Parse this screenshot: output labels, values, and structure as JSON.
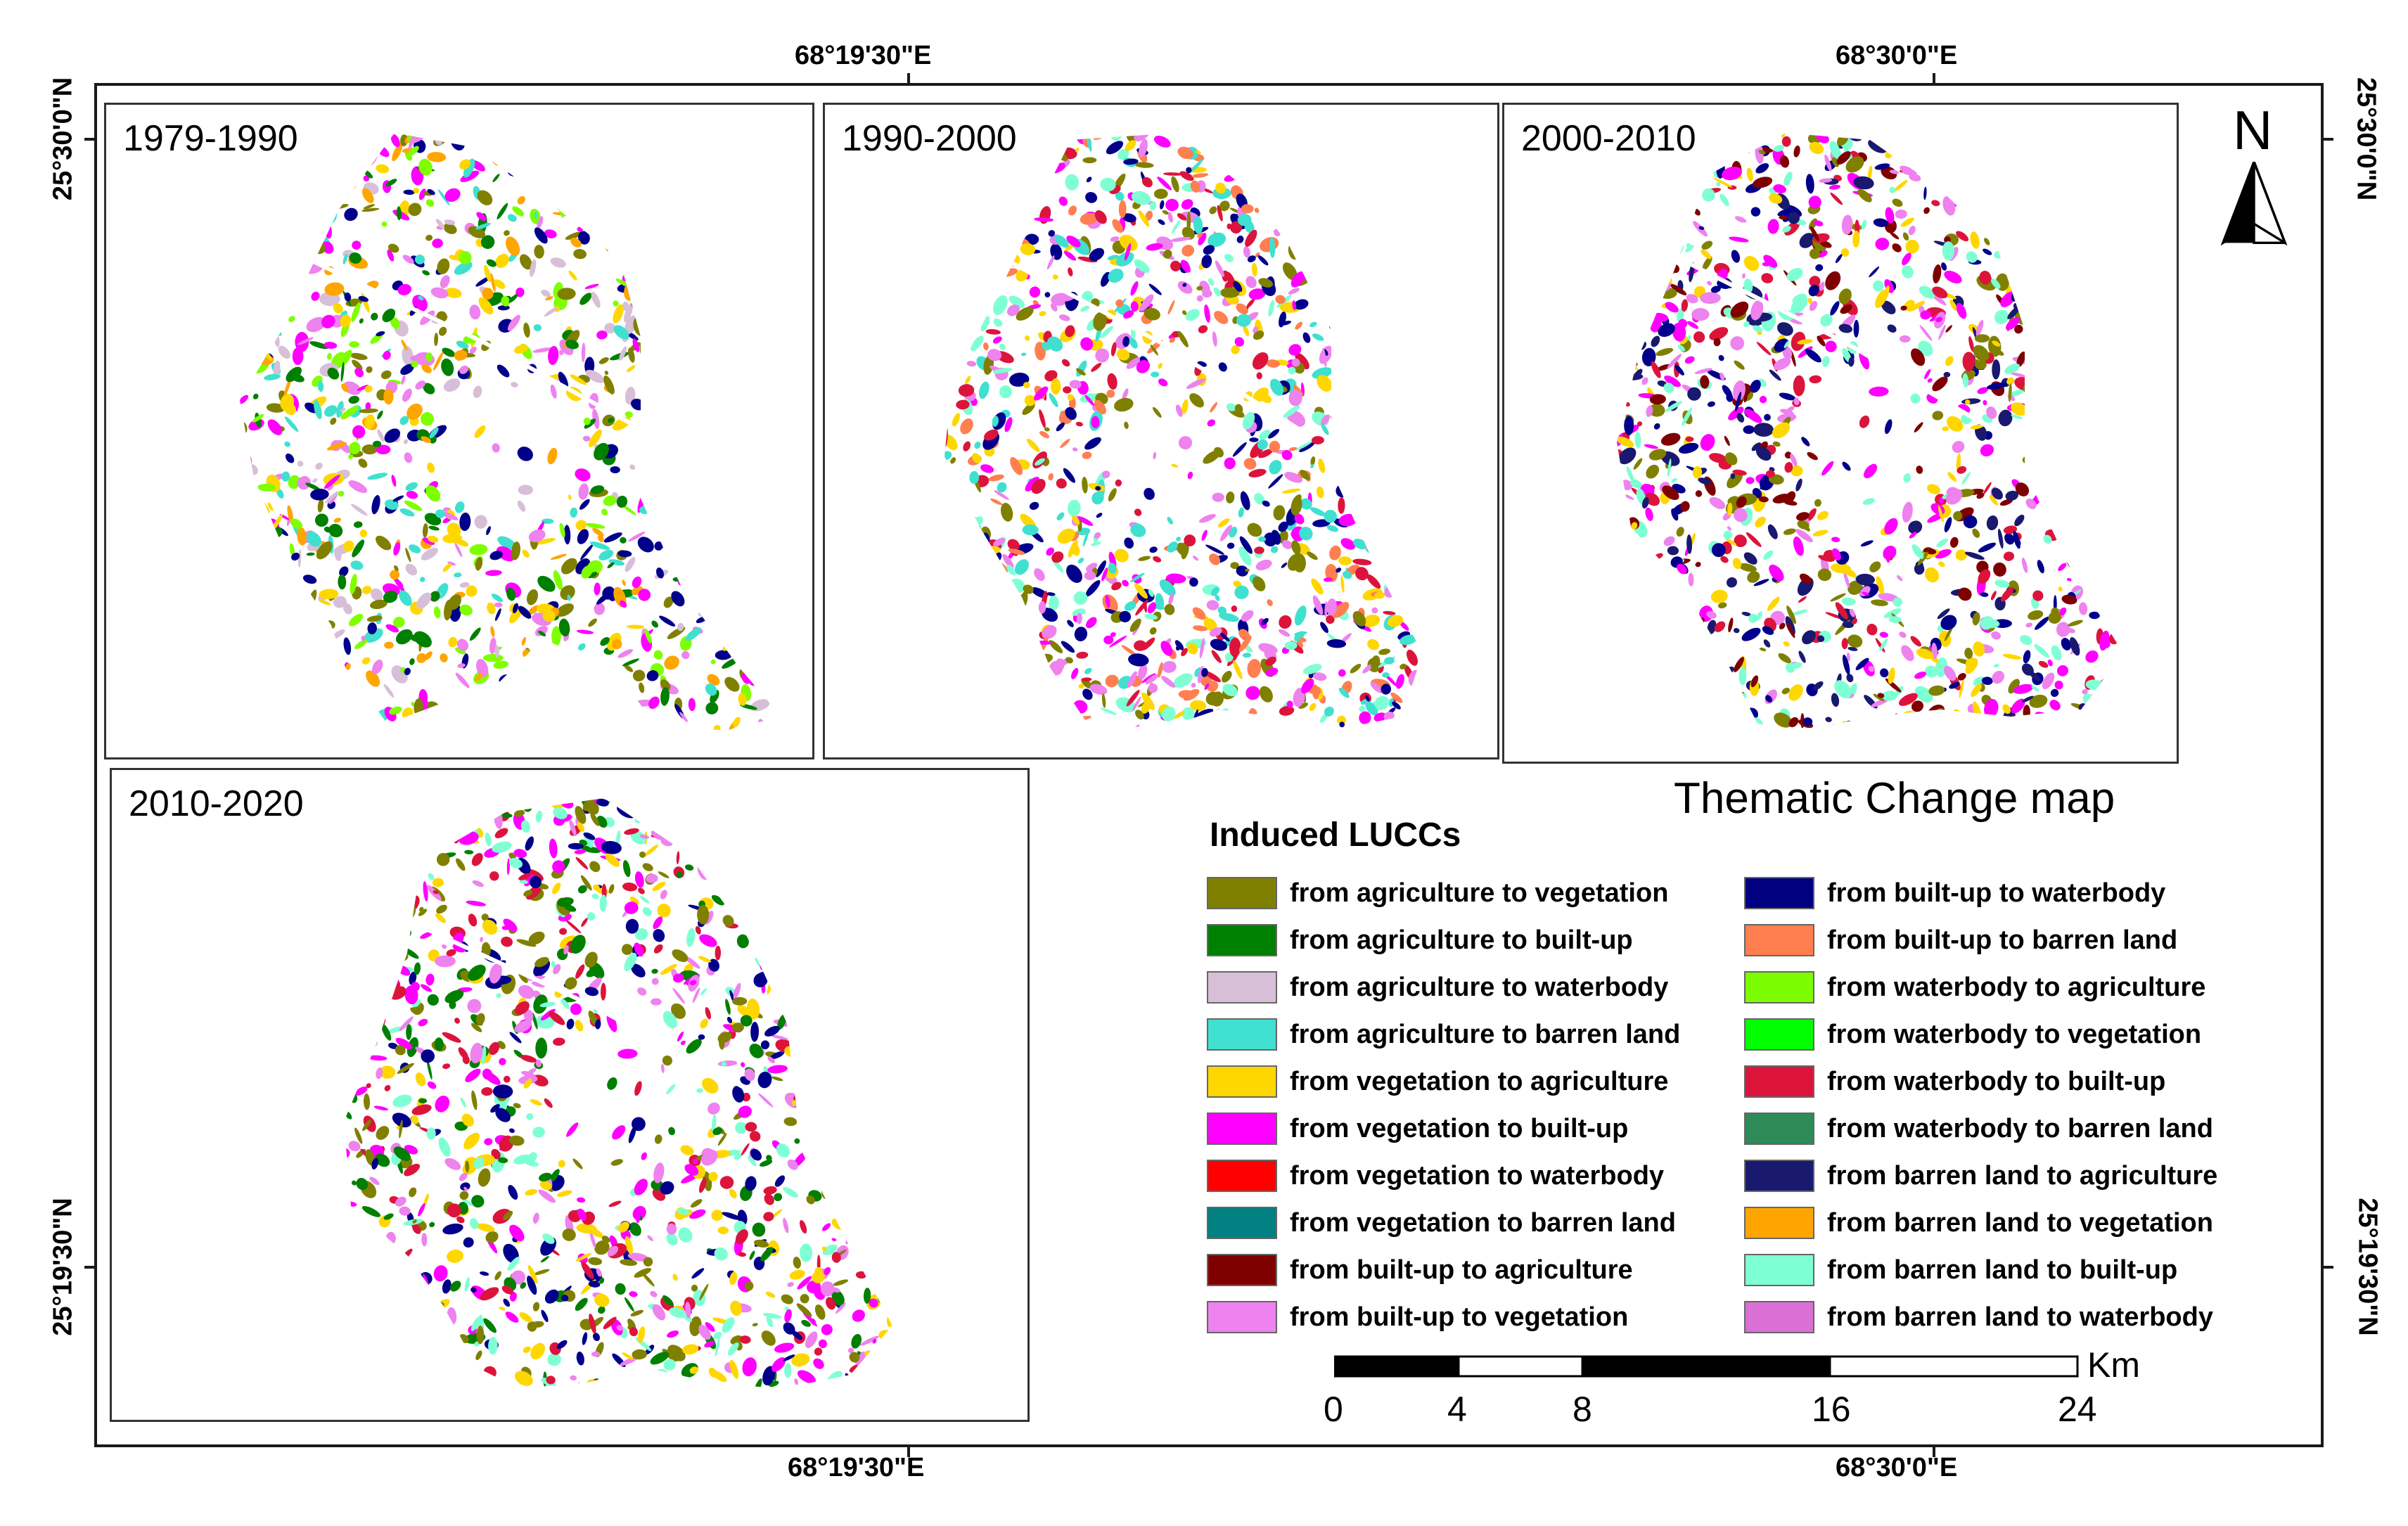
{
  "coordinates": {
    "top_left_lon": "68°19'30\"E",
    "top_right_lon": "68°30'0\"E",
    "bottom_left_lon": "68°19'30\"E",
    "bottom_right_lon": "68°30'0\"E",
    "left_top_lat": "25°30'0\"N",
    "left_bottom_lat": "25°19'30\"N",
    "right_top_lat": "25°30'0\"N",
    "right_bottom_lat": "25°19'30\"N"
  },
  "panels": [
    {
      "label": "1979-1990",
      "palette": [
        "#808000",
        "#007f00",
        "#d8bfd8",
        "#40e0d0",
        "#ffd700",
        "#ff00ff",
        "#00008b",
        "#ffa500",
        "#7fff00",
        "#ee82ee"
      ]
    },
    {
      "label": "1990-2000",
      "palette": [
        "#ff00ff",
        "#ffd700",
        "#808000",
        "#ff7f50",
        "#40e0d0",
        "#dc143c",
        "#00008b",
        "#ee82ee",
        "#7fffd4"
      ]
    },
    {
      "label": "2000-2010",
      "palette": [
        "#ff00ff",
        "#00008b",
        "#dc143c",
        "#7f0000",
        "#ffd700",
        "#808000",
        "#7fffd4",
        "#191970",
        "#ee82ee"
      ]
    },
    {
      "label": "2010-2020",
      "palette": [
        "#ff00ff",
        "#dc143c",
        "#007f00",
        "#7fffd4",
        "#ffd700",
        "#808000",
        "#00008b",
        "#ee82ee"
      ]
    }
  ],
  "map_title": "Thematic Change map",
  "legend": {
    "title": "Induced LUCCs",
    "items": [
      {
        "label": "from agriculture to vegetation",
        "color": "#808000"
      },
      {
        "label": "from agriculture to built-up",
        "color": "#008000"
      },
      {
        "label": "from agriculture to waterbody",
        "color": "#d8bfd8"
      },
      {
        "label": "from agriculture to barren land",
        "color": "#40e0d0"
      },
      {
        "label": "from vegetation to agriculture",
        "color": "#ffd700"
      },
      {
        "label": "from vegetation to built-up",
        "color": "#ff00ff"
      },
      {
        "label": "from vegetation to waterbody",
        "color": "#ff0000"
      },
      {
        "label": "from vegetation to barren land",
        "color": "#008080"
      },
      {
        "label": "from built-up to agriculture",
        "color": "#800000"
      },
      {
        "label": "from built-up to vegetation",
        "color": "#ee82ee"
      },
      {
        "label": "from built-up to waterbody",
        "color": "#000080"
      },
      {
        "label": "from built-up to barren land",
        "color": "#ff7f50"
      },
      {
        "label": "from waterbody to agriculture",
        "color": "#7cfc00"
      },
      {
        "label": "from waterbody to vegetation",
        "color": "#00ff00"
      },
      {
        "label": "from waterbody to built-up",
        "color": "#dc143c"
      },
      {
        "label": "from waterbody to barren land",
        "color": "#2e8b57"
      },
      {
        "label": "from barren land to agriculture",
        "color": "#191970"
      },
      {
        "label": "from barren land to vegetation",
        "color": "#ffa500"
      },
      {
        "label": "from barren land to built-up",
        "color": "#7fffd4"
      },
      {
        "label": "from barren land to waterbody",
        "color": "#da70d6"
      }
    ]
  },
  "scale": {
    "ticks": [
      "0",
      "4",
      "8",
      "16",
      "24"
    ],
    "unit": "Km"
  },
  "north_arrow": {
    "letter": "N",
    "icon": "north-arrow-icon"
  }
}
